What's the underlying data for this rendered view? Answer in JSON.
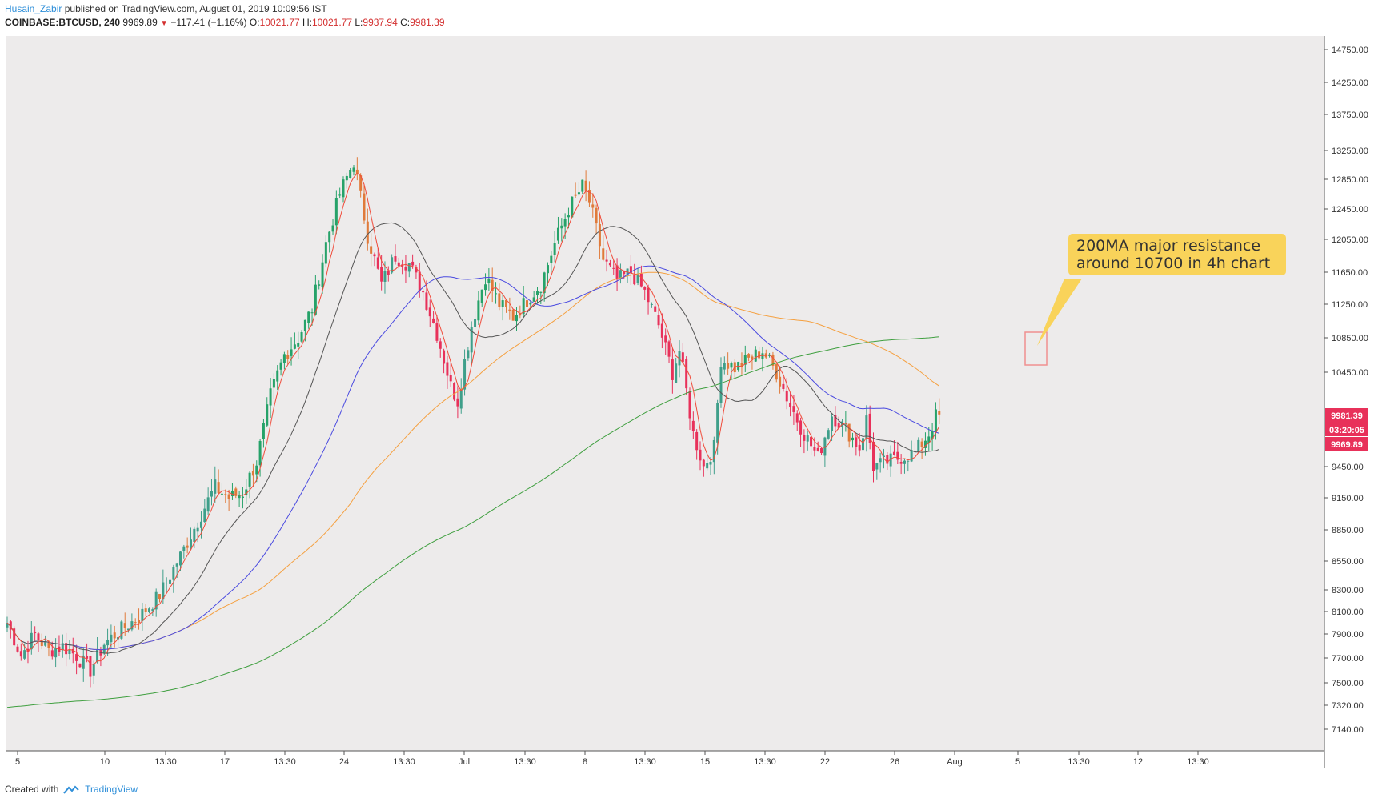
{
  "header": {
    "author": "Husain_Zabir",
    "published_text": "published on TradingView.com, August 01, 2019 10:09:56 IST",
    "symbol": "COINBASE:BTCUSD, 240",
    "last": "9969.89",
    "change": "−117.41 (−1.16%)",
    "open_label": "O:",
    "open": "10021.77",
    "high_label": "H:",
    "high": "10021.77",
    "low_label": "L:",
    "low": "9937.94",
    "close_label": "C:",
    "close": "9981.39"
  },
  "footer": {
    "created_with": "Created with",
    "brand": "TradingView"
  },
  "annotation": {
    "line1": "200MA major resistance",
    "line2": "around 10700 in 4h chart"
  },
  "price_tags": {
    "close": "9981.39",
    "countdown": "03:20:05",
    "last": "9969.89"
  },
  "colors": {
    "up": "#3f9f8a",
    "up_strong": "#26a269",
    "down": "#e8315a",
    "down_orange": "#e07a3a",
    "ma_fast": "#f04b3a",
    "ma_20": "#555555",
    "ma_50": "#4a4ae0",
    "ma_100": "#f5a040",
    "ma_200": "#3f9f3f",
    "annotation_bg": "#f9d35a",
    "highlight_box": "#f09090",
    "plot_bg": "#edebeb"
  },
  "chart_data": {
    "type": "candlestick",
    "symbol": "COINBASE:BTCUSD",
    "timeframe": "240",
    "y_ticks": [
      14750,
      14250,
      13750,
      13250,
      12850,
      12450,
      12050,
      11650,
      11250,
      10850,
      10450,
      9450,
      9150,
      8850,
      8550,
      8300,
      8100,
      7900,
      7700,
      7500,
      7320,
      7140
    ],
    "y_tick_labels": [
      "14750.00",
      "14250.00",
      "13750.00",
      "13250.00",
      "12850.00",
      "12450.00",
      "12050.00",
      "11650.00",
      "11250.00",
      "10850.00",
      "10450.00",
      "9450.00",
      "9150.00",
      "8850.00",
      "8550.00",
      "8300.00",
      "8100.00",
      "7900.00",
      "7700.00",
      "7500.00",
      "7320.00",
      "7140.00"
    ],
    "x_ticks": [
      "5",
      "10",
      "13:30",
      "17",
      "13:30",
      "24",
      "13:30",
      "Jul",
      "13:30",
      "8",
      "13:30",
      "15",
      "13:30",
      "22",
      "26",
      "Aug",
      "5",
      "13:30",
      "12",
      "13:30"
    ],
    "price_path": [
      [
        0,
        8000
      ],
      [
        4,
        7720
      ],
      [
        8,
        7900
      ],
      [
        12,
        7760
      ],
      [
        16,
        7800
      ],
      [
        20,
        7720
      ],
      [
        24,
        7600
      ],
      [
        28,
        7820
      ],
      [
        32,
        7920
      ],
      [
        38,
        8050
      ],
      [
        44,
        8250
      ],
      [
        50,
        8600
      ],
      [
        56,
        9000
      ],
      [
        60,
        9250
      ],
      [
        64,
        9150
      ],
      [
        68,
        9200
      ],
      [
        72,
        9500
      ],
      [
        76,
        10200
      ],
      [
        80,
        10650
      ],
      [
        84,
        10850
      ],
      [
        88,
        11200
      ],
      [
        92,
        12000
      ],
      [
        96,
        12650
      ],
      [
        100,
        13100
      ],
      [
        104,
        12100
      ],
      [
        108,
        11500
      ],
      [
        112,
        11850
      ],
      [
        116,
        11750
      ],
      [
        120,
        11400
      ],
      [
        124,
        10900
      ],
      [
        128,
        10300
      ],
      [
        130,
        10150
      ],
      [
        134,
        11000
      ],
      [
        138,
        11600
      ],
      [
        142,
        11250
      ],
      [
        146,
        11100
      ],
      [
        150,
        11300
      ],
      [
        154,
        11500
      ],
      [
        158,
        12000
      ],
      [
        162,
        12450
      ],
      [
        166,
        12750
      ],
      [
        168,
        12550
      ],
      [
        172,
        11800
      ],
      [
        176,
        11550
      ],
      [
        180,
        11650
      ],
      [
        184,
        11400
      ],
      [
        188,
        11000
      ],
      [
        192,
        10450
      ],
      [
        194,
        10700
      ],
      [
        198,
        9800
      ],
      [
        201,
        9450
      ],
      [
        204,
        9650
      ],
      [
        206,
        10600
      ],
      [
        210,
        10500
      ],
      [
        214,
        10600
      ],
      [
        218,
        10700
      ],
      [
        222,
        10450
      ],
      [
        226,
        10100
      ],
      [
        230,
        9800
      ],
      [
        234,
        9550
      ],
      [
        238,
        10000
      ],
      [
        242,
        9850
      ],
      [
        246,
        9650
      ],
      [
        248,
        9950
      ],
      [
        250,
        9450
      ],
      [
        254,
        9500
      ],
      [
        258,
        9550
      ],
      [
        262,
        9600
      ],
      [
        266,
        9800
      ],
      [
        268,
        9981
      ]
    ],
    "moving_averages": [
      {
        "name": "MA fast",
        "color": "#f04b3a"
      },
      {
        "name": "MA 20",
        "color": "#555555"
      },
      {
        "name": "MA 50",
        "color": "#4a4ae0"
      },
      {
        "name": "MA 100",
        "color": "#f5a040"
      },
      {
        "name": "MA 200",
        "color": "#3f9f3f"
      }
    ],
    "annotation": {
      "text": "200MA major resistance around 10700 in 4h chart",
      "price": 10700
    }
  }
}
